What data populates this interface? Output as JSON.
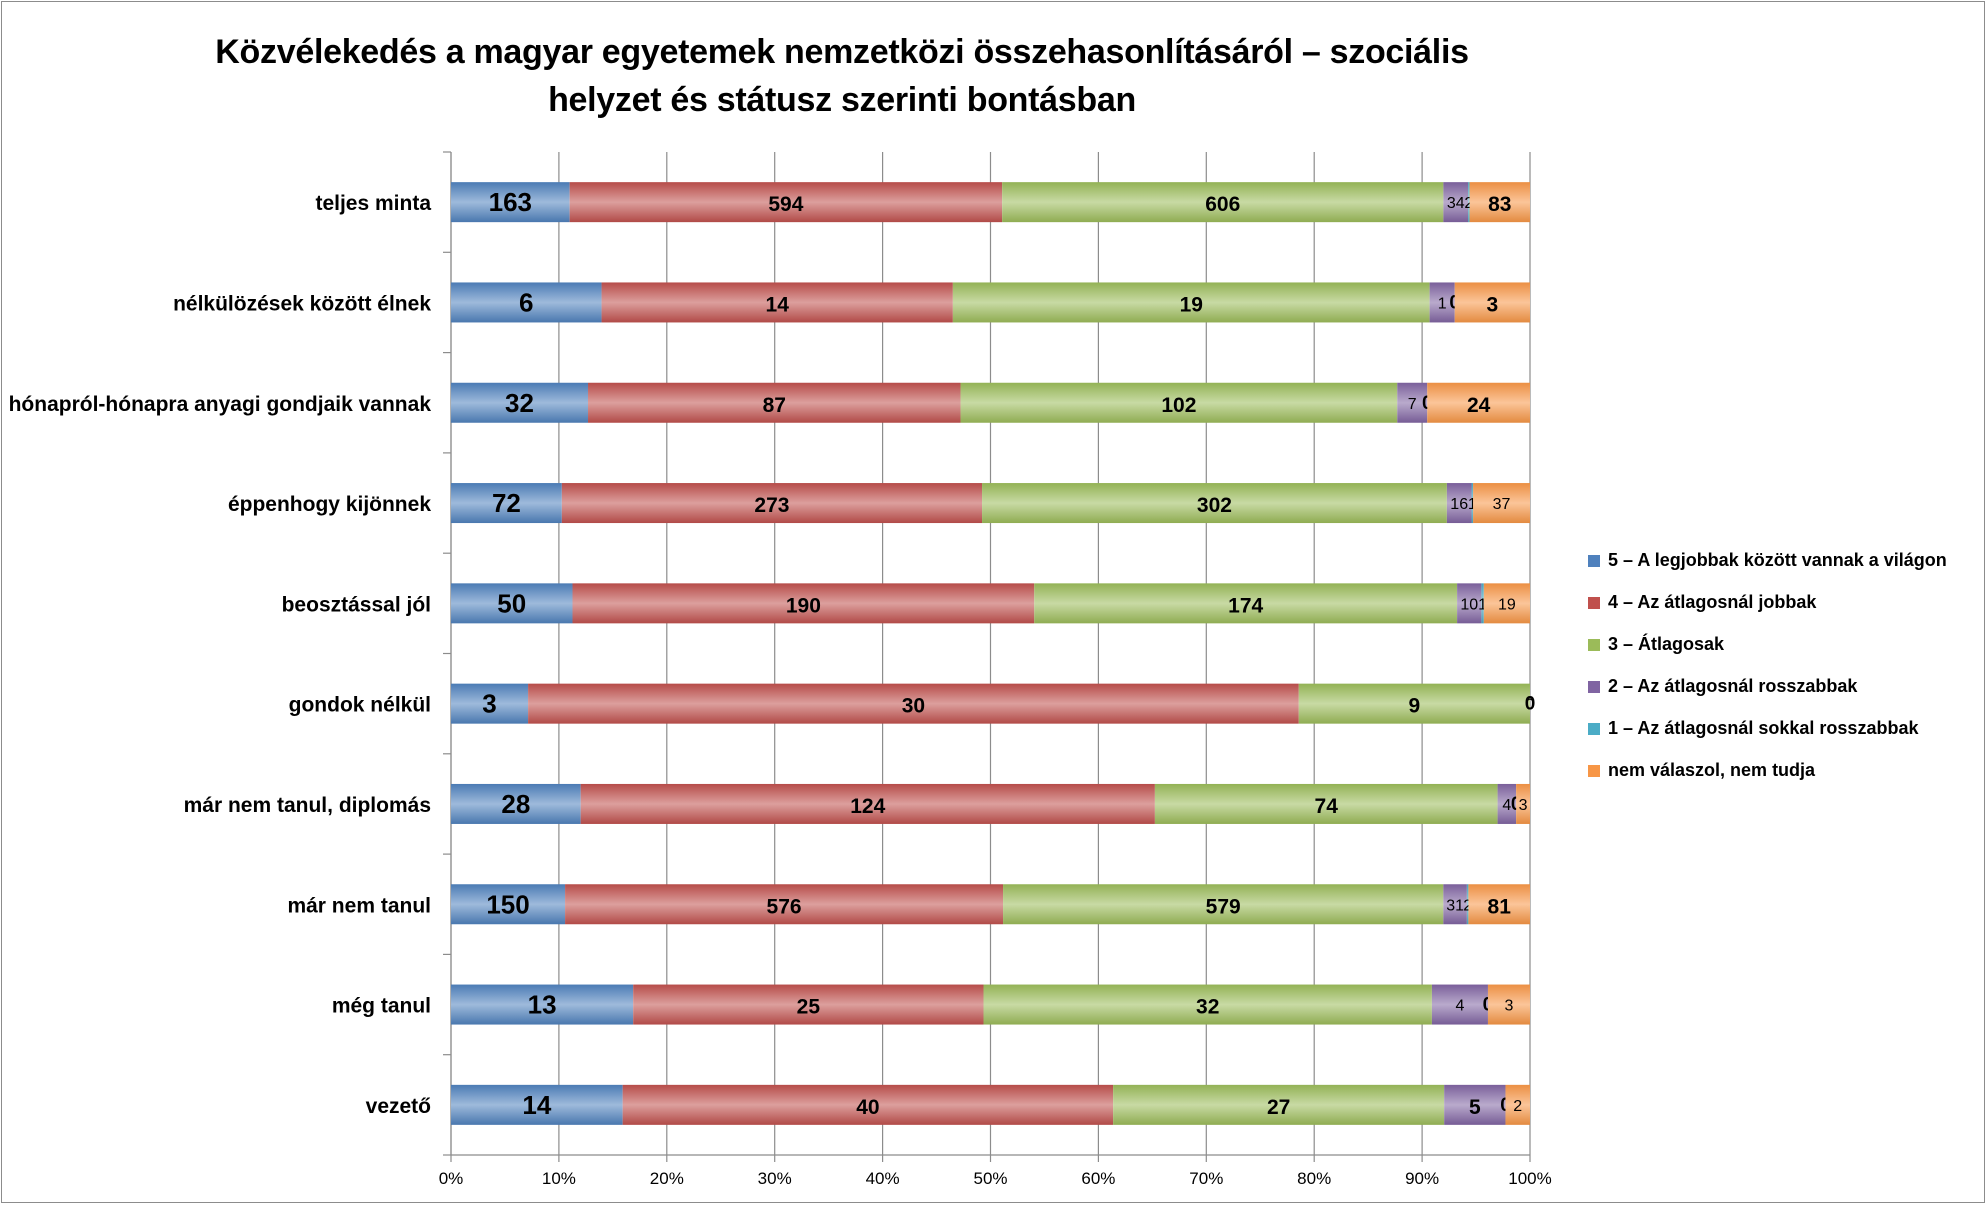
{
  "chart_data": {
    "type": "bar",
    "orientation": "horizontal",
    "stacked": "percent",
    "title": "Közvélekedés a magyar egyetemek nemzetközi összehasonlításáról – szociális helyzet és státusz szerinti bontásban",
    "categories": [
      "teljes minta",
      "nélkülözések között élnek",
      "hónapról-hónapra anyagi gondjaik vannak",
      "éppenhogy kijönnek",
      "beosztással jól",
      "gondok nélkül",
      "már nem tanul, diplomás",
      "már nem tanul",
      "még tanul",
      "vezető"
    ],
    "series": [
      {
        "name": "5 – A legjobbak között vannak a világon",
        "color": "#4f81bd",
        "values": [
          163,
          6,
          32,
          72,
          50,
          3,
          28,
          150,
          13,
          14
        ]
      },
      {
        "name": "4 – Az átlagosnál jobbak",
        "color": "#c0504d",
        "values": [
          594,
          14,
          87,
          273,
          190,
          30,
          124,
          576,
          25,
          40
        ]
      },
      {
        "name": "3 – Átlagosak",
        "color": "#9bbb59",
        "values": [
          606,
          19,
          102,
          302,
          174,
          9,
          74,
          579,
          32,
          27
        ]
      },
      {
        "name": "2 – Az átlagosnál rosszabbak",
        "color": "#8064a2",
        "values": [
          34,
          1,
          7,
          16,
          10,
          0,
          4,
          31,
          4,
          5
        ]
      },
      {
        "name": "1 – Az átlagosnál sokkal rosszabbak",
        "color": "#4bacc6",
        "values": [
          2,
          0,
          0,
          1,
          1,
          0,
          0,
          2,
          0,
          0
        ]
      },
      {
        "name": "nem válaszol, nem tudja",
        "color": "#f79646",
        "values": [
          83,
          3,
          24,
          37,
          19,
          0,
          3,
          81,
          3,
          2
        ]
      }
    ],
    "xaxis_ticks": [
      "0%",
      "10%",
      "20%",
      "30%",
      "40%",
      "50%",
      "60%",
      "70%",
      "80%",
      "90%",
      "100%"
    ],
    "xlim": [
      0,
      100
    ],
    "grid": "vertical",
    "legend": "right"
  }
}
